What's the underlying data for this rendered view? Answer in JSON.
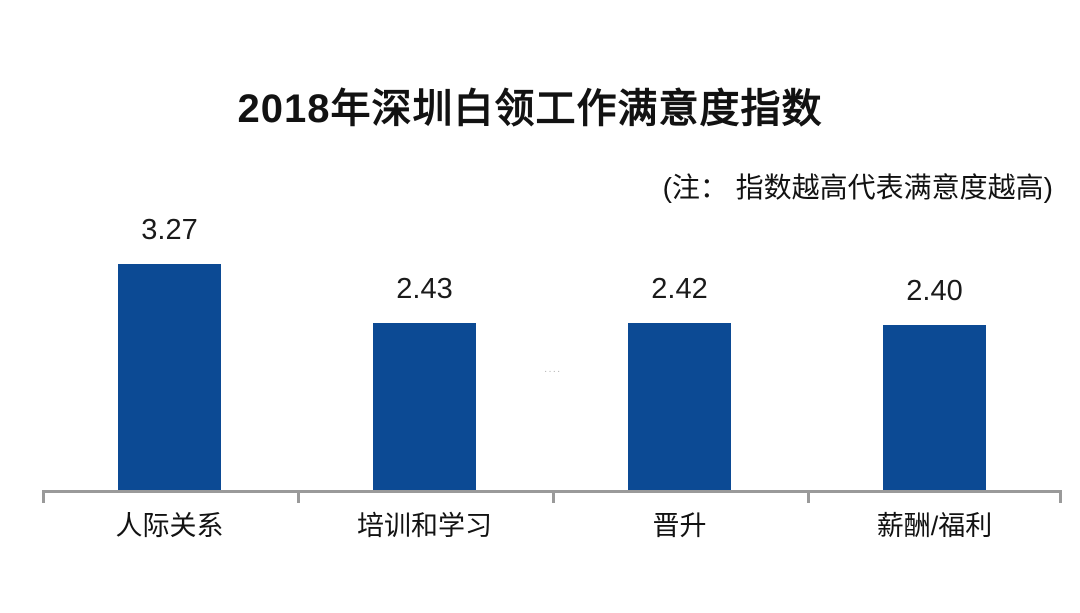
{
  "page": {
    "background_color": "#ffffff"
  },
  "header": {
    "title": "2018年深圳白领工作满意度指数",
    "note": "(注： 指数越高代表满意度越高)"
  },
  "chart_data": {
    "type": "bar",
    "title": "2018年深圳白领工作满意度指数",
    "annotation": "(注： 指数越高代表满意度越高)",
    "categories": [
      "人际关系",
      "培训和学习",
      "晋升",
      "薪酬/福利"
    ],
    "values": [
      3.27,
      2.43,
      2.42,
      2.4
    ],
    "value_labels": [
      "3.27",
      "2.43",
      "2.42",
      "2.40"
    ],
    "xlabel": "",
    "ylabel": "",
    "ylim": [
      0,
      3.5
    ],
    "grid": false,
    "legend": "none",
    "bar_color": "#0c4a94",
    "axis_color": "#9a9a9a",
    "text_color": "#1a1a1a"
  },
  "artifact": {
    "dots": "····"
  }
}
